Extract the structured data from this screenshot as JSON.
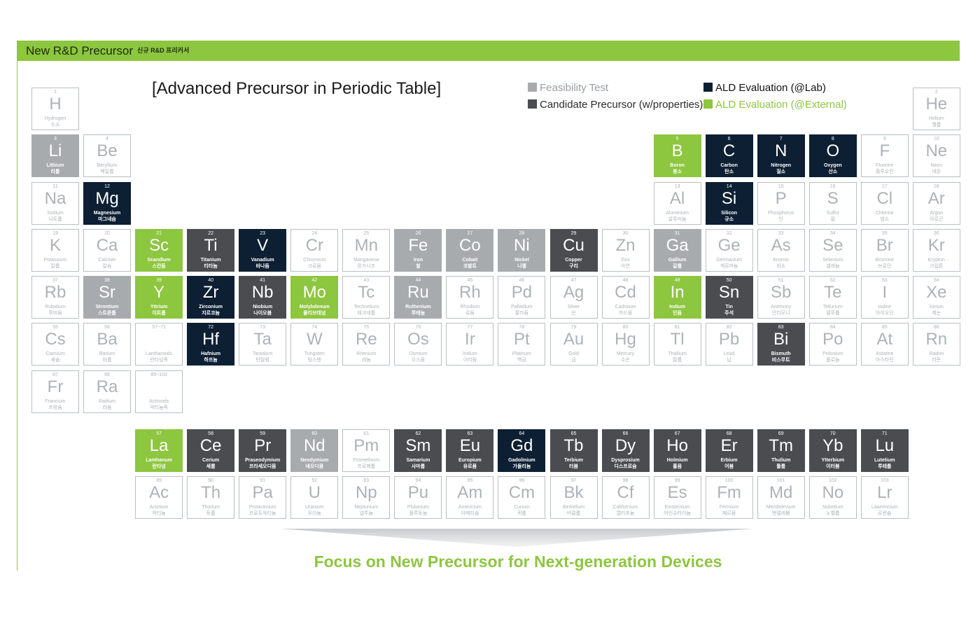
{
  "header": {
    "title": "New R&D Precursor",
    "subtitle": "신규 R&D 프리커서"
  },
  "table_title": "[Advanced Precursor in Periodic Table]",
  "legend": [
    {
      "label": "Feasibility Test",
      "color": "#a7abae",
      "text_color": "#9a9ea2"
    },
    {
      "label": "Candidate Precursor (w/properties)",
      "color": "#4a4c50",
      "text_color": "#2b2b2b"
    },
    {
      "label": "ALD Evaluation (@Lab)",
      "color": "#0c1f33",
      "text_color": "#111111"
    },
    {
      "label": "ALD Evaluation (@External)",
      "color": "#8dc63f",
      "text_color": "#8dc63f"
    }
  ],
  "elements": [
    {
      "n": "1",
      "s": "H",
      "en": "Hydrogen",
      "ko": "수소",
      "r": 0,
      "c": 0,
      "st": ""
    },
    {
      "n": "2",
      "s": "He",
      "en": "Helium",
      "ko": "헬륨",
      "r": 0,
      "c": 17,
      "st": ""
    },
    {
      "n": "3",
      "s": "Li",
      "en": "Lithium",
      "ko": "리튬",
      "r": 1,
      "c": 0,
      "st": "gray"
    },
    {
      "n": "4",
      "s": "Be",
      "en": "Beryllium",
      "ko": "베릴륨",
      "r": 1,
      "c": 1,
      "st": ""
    },
    {
      "n": "5",
      "s": "B",
      "en": "Boron",
      "ko": "붕소",
      "r": 1,
      "c": 12,
      "st": "green"
    },
    {
      "n": "6",
      "s": "C",
      "en": "Carbon",
      "ko": "탄소",
      "r": 1,
      "c": 13,
      "st": "navy"
    },
    {
      "n": "7",
      "s": "N",
      "en": "Nitrogen",
      "ko": "질소",
      "r": 1,
      "c": 14,
      "st": "navy"
    },
    {
      "n": "8",
      "s": "O",
      "en": "Oxygen",
      "ko": "산소",
      "r": 1,
      "c": 15,
      "st": "navy"
    },
    {
      "n": "9",
      "s": "F",
      "en": "Fluorine",
      "ko": "플루오린",
      "r": 1,
      "c": 16,
      "st": ""
    },
    {
      "n": "10",
      "s": "Ne",
      "en": "Neon",
      "ko": "네온",
      "r": 1,
      "c": 17,
      "st": ""
    },
    {
      "n": "11",
      "s": "Na",
      "en": "Sodium",
      "ko": "나트륨",
      "r": 2,
      "c": 0,
      "st": ""
    },
    {
      "n": "12",
      "s": "Mg",
      "en": "Magnesium",
      "ko": "마그네슘",
      "r": 2,
      "c": 1,
      "st": "navy"
    },
    {
      "n": "13",
      "s": "Al",
      "en": "Aluminium",
      "ko": "알루미늄",
      "r": 2,
      "c": 12,
      "st": ""
    },
    {
      "n": "14",
      "s": "Si",
      "en": "Silicon",
      "ko": "규소",
      "r": 2,
      "c": 13,
      "st": "navy"
    },
    {
      "n": "15",
      "s": "P",
      "en": "Phosphorus",
      "ko": "인",
      "r": 2,
      "c": 14,
      "st": ""
    },
    {
      "n": "16",
      "s": "S",
      "en": "Sulfur",
      "ko": "황",
      "r": 2,
      "c": 15,
      "st": ""
    },
    {
      "n": "17",
      "s": "Cl",
      "en": "Chlorine",
      "ko": "염소",
      "r": 2,
      "c": 16,
      "st": ""
    },
    {
      "n": "18",
      "s": "Ar",
      "en": "Argon",
      "ko": "아르곤",
      "r": 2,
      "c": 17,
      "st": ""
    },
    {
      "n": "19",
      "s": "K",
      "en": "Potassium",
      "ko": "칼륨",
      "r": 3,
      "c": 0,
      "st": ""
    },
    {
      "n": "20",
      "s": "Ca",
      "en": "Calcium",
      "ko": "칼슘",
      "r": 3,
      "c": 1,
      "st": ""
    },
    {
      "n": "21",
      "s": "Sc",
      "en": "Scandium",
      "ko": "스칸듐",
      "r": 3,
      "c": 2,
      "st": "green"
    },
    {
      "n": "22",
      "s": "Ti",
      "en": "Titanium",
      "ko": "티타늄",
      "r": 3,
      "c": 3,
      "st": "dark"
    },
    {
      "n": "23",
      "s": "V",
      "en": "Vanadium",
      "ko": "바나듐",
      "r": 3,
      "c": 4,
      "st": "navy"
    },
    {
      "n": "24",
      "s": "Cr",
      "en": "Chromium",
      "ko": "크로뮴",
      "r": 3,
      "c": 5,
      "st": ""
    },
    {
      "n": "25",
      "s": "Mn",
      "en": "Manganese",
      "ko": "망가니즈",
      "r": 3,
      "c": 6,
      "st": ""
    },
    {
      "n": "26",
      "s": "Fe",
      "en": "Iron",
      "ko": "철",
      "r": 3,
      "c": 7,
      "st": "gray"
    },
    {
      "n": "27",
      "s": "Co",
      "en": "Cobalt",
      "ko": "코발트",
      "r": 3,
      "c": 8,
      "st": "gray"
    },
    {
      "n": "28",
      "s": "Ni",
      "en": "Nickel",
      "ko": "니켈",
      "r": 3,
      "c": 9,
      "st": "gray"
    },
    {
      "n": "29",
      "s": "Cu",
      "en": "Copper",
      "ko": "구리",
      "r": 3,
      "c": 10,
      "st": "dark"
    },
    {
      "n": "30",
      "s": "Zn",
      "en": "Zinc",
      "ko": "아연",
      "r": 3,
      "c": 11,
      "st": ""
    },
    {
      "n": "31",
      "s": "Ga",
      "en": "Gallium",
      "ko": "갈륨",
      "r": 3,
      "c": 12,
      "st": "gray"
    },
    {
      "n": "32",
      "s": "Ge",
      "en": "Germanium",
      "ko": "게르마늄",
      "r": 3,
      "c": 13,
      "st": ""
    },
    {
      "n": "33",
      "s": "As",
      "en": "Arsenic",
      "ko": "비소",
      "r": 3,
      "c": 14,
      "st": ""
    },
    {
      "n": "34",
      "s": "Se",
      "en": "Selenium",
      "ko": "셀레늄",
      "r": 3,
      "c": 15,
      "st": ""
    },
    {
      "n": "35",
      "s": "Br",
      "en": "Bromine",
      "ko": "브로민",
      "r": 3,
      "c": 16,
      "st": ""
    },
    {
      "n": "36",
      "s": "Kr",
      "en": "Krypton",
      "ko": "크립톤",
      "r": 3,
      "c": 17,
      "st": ""
    },
    {
      "n": "37",
      "s": "Rb",
      "en": "Rubidium",
      "ko": "루비듐",
      "r": 4,
      "c": 0,
      "st": ""
    },
    {
      "n": "38",
      "s": "Sr",
      "en": "Strontium",
      "ko": "스트론튬",
      "r": 4,
      "c": 1,
      "st": "gray"
    },
    {
      "n": "39",
      "s": "Y",
      "en": "Yttrium",
      "ko": "이트륨",
      "r": 4,
      "c": 2,
      "st": "green"
    },
    {
      "n": "40",
      "s": "Zr",
      "en": "Zirconium",
      "ko": "지르코늄",
      "r": 4,
      "c": 3,
      "st": "navy"
    },
    {
      "n": "41",
      "s": "Nb",
      "en": "Niobium",
      "ko": "나이오븀",
      "r": 4,
      "c": 4,
      "st": "dark"
    },
    {
      "n": "42",
      "s": "Mo",
      "en": "Molybdenum",
      "ko": "몰리브데넘",
      "r": 4,
      "c": 5,
      "st": "green"
    },
    {
      "n": "43",
      "s": "Tc",
      "en": "Technetium",
      "ko": "테크네튬",
      "r": 4,
      "c": 6,
      "st": ""
    },
    {
      "n": "44",
      "s": "Ru",
      "en": "Ruthenium",
      "ko": "루테늄",
      "r": 4,
      "c": 7,
      "st": "gray"
    },
    {
      "n": "45",
      "s": "Rh",
      "en": "Rhodium",
      "ko": "로듐",
      "r": 4,
      "c": 8,
      "st": ""
    },
    {
      "n": "46",
      "s": "Pd",
      "en": "Palladium",
      "ko": "팔라듐",
      "r": 4,
      "c": 9,
      "st": ""
    },
    {
      "n": "47",
      "s": "Ag",
      "en": "Silver",
      "ko": "은",
      "r": 4,
      "c": 10,
      "st": ""
    },
    {
      "n": "48",
      "s": "Cd",
      "en": "Cadmium",
      "ko": "카드뮴",
      "r": 4,
      "c": 11,
      "st": ""
    },
    {
      "n": "49",
      "s": "In",
      "en": "Indium",
      "ko": "인듐",
      "r": 4,
      "c": 12,
      "st": "green"
    },
    {
      "n": "50",
      "s": "Sn",
      "en": "Tin",
      "ko": "주석",
      "r": 4,
      "c": 13,
      "st": "dark"
    },
    {
      "n": "51",
      "s": "Sb",
      "en": "Antimony",
      "ko": "안티모니",
      "r": 4,
      "c": 14,
      "st": ""
    },
    {
      "n": "52",
      "s": "Te",
      "en": "Tellurium",
      "ko": "텔루륨",
      "r": 4,
      "c": 15,
      "st": ""
    },
    {
      "n": "53",
      "s": "I",
      "en": "Iodine",
      "ko": "아이오딘",
      "r": 4,
      "c": 16,
      "st": ""
    },
    {
      "n": "54",
      "s": "Xe",
      "en": "Xenon",
      "ko": "제논",
      "r": 4,
      "c": 17,
      "st": ""
    },
    {
      "n": "55",
      "s": "Cs",
      "en": "Caesium",
      "ko": "세슘",
      "r": 5,
      "c": 0,
      "st": ""
    },
    {
      "n": "56",
      "s": "Ba",
      "en": "Barium",
      "ko": "바륨",
      "r": 5,
      "c": 1,
      "st": ""
    },
    {
      "n": "57~71",
      "s": "",
      "en": "Lanthanoids",
      "ko": "란타넘족",
      "r": 5,
      "c": 2,
      "st": "range"
    },
    {
      "n": "72",
      "s": "Hf",
      "en": "Hafnium",
      "ko": "하프늄",
      "r": 5,
      "c": 3,
      "st": "navy"
    },
    {
      "n": "73",
      "s": "Ta",
      "en": "Tantalum",
      "ko": "탄탈럼",
      "r": 5,
      "c": 4,
      "st": ""
    },
    {
      "n": "74",
      "s": "W",
      "en": "Tungsten",
      "ko": "텅스텐",
      "r": 5,
      "c": 5,
      "st": ""
    },
    {
      "n": "75",
      "s": "Re",
      "en": "Rhenium",
      "ko": "레늄",
      "r": 5,
      "c": 6,
      "st": ""
    },
    {
      "n": "76",
      "s": "Os",
      "en": "Osmium",
      "ko": "오스뮴",
      "r": 5,
      "c": 7,
      "st": ""
    },
    {
      "n": "77",
      "s": "Ir",
      "en": "Iridium",
      "ko": "이리듐",
      "r": 5,
      "c": 8,
      "st": ""
    },
    {
      "n": "78",
      "s": "Pt",
      "en": "Platinum",
      "ko": "백금",
      "r": 5,
      "c": 9,
      "st": ""
    },
    {
      "n": "79",
      "s": "Au",
      "en": "Gold",
      "ko": "금",
      "r": 5,
      "c": 10,
      "st": ""
    },
    {
      "n": "80",
      "s": "Hg",
      "en": "Mercury",
      "ko": "수은",
      "r": 5,
      "c": 11,
      "st": ""
    },
    {
      "n": "81",
      "s": "Tl",
      "en": "Thallium",
      "ko": "탈륨",
      "r": 5,
      "c": 12,
      "st": ""
    },
    {
      "n": "82",
      "s": "Pb",
      "en": "Lead",
      "ko": "납",
      "r": 5,
      "c": 13,
      "st": ""
    },
    {
      "n": "83",
      "s": "Bi",
      "en": "Bismuth",
      "ko": "비스무트",
      "r": 5,
      "c": 14,
      "st": "dark"
    },
    {
      "n": "84",
      "s": "Po",
      "en": "Polonium",
      "ko": "폴로늄",
      "r": 5,
      "c": 15,
      "st": ""
    },
    {
      "n": "85",
      "s": "At",
      "en": "Astatine",
      "ko": "아스타틴",
      "r": 5,
      "c": 16,
      "st": ""
    },
    {
      "n": "86",
      "s": "Rn",
      "en": "Radon",
      "ko": "라돈",
      "r": 5,
      "c": 17,
      "st": ""
    },
    {
      "n": "87",
      "s": "Fr",
      "en": "Francium",
      "ko": "프랑슘",
      "r": 6,
      "c": 0,
      "st": ""
    },
    {
      "n": "88",
      "s": "Ra",
      "en": "Radium",
      "ko": "라듐",
      "r": 6,
      "c": 1,
      "st": ""
    },
    {
      "n": "89~103",
      "s": "",
      "en": "Actinoids",
      "ko": "악티늄족",
      "r": 6,
      "c": 2,
      "st": "range"
    },
    {
      "n": "57",
      "s": "La",
      "en": "Lanthanum",
      "ko": "란타넘",
      "r": 7,
      "c": 2,
      "st": "green"
    },
    {
      "n": "58",
      "s": "Ce",
      "en": "Cerium",
      "ko": "세륨",
      "r": 7,
      "c": 3,
      "st": "dark"
    },
    {
      "n": "59",
      "s": "Pr",
      "en": "Praseodymium",
      "ko": "프라세오디뮴",
      "r": 7,
      "c": 4,
      "st": "dark"
    },
    {
      "n": "60",
      "s": "Nd",
      "en": "Neodymium",
      "ko": "네오디뮴",
      "r": 7,
      "c": 5,
      "st": "gray"
    },
    {
      "n": "61",
      "s": "Pm",
      "en": "Promethium",
      "ko": "프로메튬",
      "r": 7,
      "c": 6,
      "st": ""
    },
    {
      "n": "62",
      "s": "Sm",
      "en": "Samarium",
      "ko": "사마륨",
      "r": 7,
      "c": 7,
      "st": "dark"
    },
    {
      "n": "63",
      "s": "Eu",
      "en": "Europium",
      "ko": "유로퓸",
      "r": 7,
      "c": 8,
      "st": "dark"
    },
    {
      "n": "64",
      "s": "Gd",
      "en": "Gadolinium",
      "ko": "가돌리늄",
      "r": 7,
      "c": 9,
      "st": "navy"
    },
    {
      "n": "65",
      "s": "Tb",
      "en": "Terbium",
      "ko": "터븀",
      "r": 7,
      "c": 10,
      "st": "dark"
    },
    {
      "n": "66",
      "s": "Dy",
      "en": "Dysprosium",
      "ko": "디스프로슘",
      "r": 7,
      "c": 11,
      "st": "dark"
    },
    {
      "n": "67",
      "s": "Ho",
      "en": "Holmium",
      "ko": "홀뮴",
      "r": 7,
      "c": 12,
      "st": "dark"
    },
    {
      "n": "68",
      "s": "Er",
      "en": "Erbium",
      "ko": "어븀",
      "r": 7,
      "c": 13,
      "st": "dark"
    },
    {
      "n": "69",
      "s": "Tm",
      "en": "Thulium",
      "ko": "툴륨",
      "r": 7,
      "c": 14,
      "st": "dark"
    },
    {
      "n": "70",
      "s": "Yb",
      "en": "Ytterbium",
      "ko": "이터븀",
      "r": 7,
      "c": 15,
      "st": "dark"
    },
    {
      "n": "71",
      "s": "Lu",
      "en": "Lutetium",
      "ko": "루테튬",
      "r": 7,
      "c": 16,
      "st": "dark"
    },
    {
      "n": "89",
      "s": "Ac",
      "en": "Actinium",
      "ko": "악티늄",
      "r": 8,
      "c": 2,
      "st": ""
    },
    {
      "n": "90",
      "s": "Th",
      "en": "Thorium",
      "ko": "토륨",
      "r": 8,
      "c": 3,
      "st": ""
    },
    {
      "n": "91",
      "s": "Pa",
      "en": "Protactinium",
      "ko": "프로트악티늄",
      "r": 8,
      "c": 4,
      "st": ""
    },
    {
      "n": "92",
      "s": "U",
      "en": "Uranium",
      "ko": "우라늄",
      "r": 8,
      "c": 5,
      "st": ""
    },
    {
      "n": "93",
      "s": "Np",
      "en": "Neptunium",
      "ko": "넵투늄",
      "r": 8,
      "c": 6,
      "st": ""
    },
    {
      "n": "94",
      "s": "Pu",
      "en": "Plutonium",
      "ko": "플루토늄",
      "r": 8,
      "c": 7,
      "st": ""
    },
    {
      "n": "95",
      "s": "Am",
      "en": "Americium",
      "ko": "아메리슘",
      "r": 8,
      "c": 8,
      "st": ""
    },
    {
      "n": "96",
      "s": "Cm",
      "en": "Curium",
      "ko": "퀴륨",
      "r": 8,
      "c": 9,
      "st": ""
    },
    {
      "n": "97",
      "s": "Bk",
      "en": "Berkelium",
      "ko": "버클륨",
      "r": 8,
      "c": 10,
      "st": ""
    },
    {
      "n": "98",
      "s": "Cf",
      "en": "Californium",
      "ko": "캘리포늄",
      "r": 8,
      "c": 11,
      "st": ""
    },
    {
      "n": "99",
      "s": "Es",
      "en": "Einsteinium",
      "ko": "아인슈타이늄",
      "r": 8,
      "c": 12,
      "st": ""
    },
    {
      "n": "100",
      "s": "Fm",
      "en": "Fermium",
      "ko": "페르뮴",
      "r": 8,
      "c": 13,
      "st": ""
    },
    {
      "n": "101",
      "s": "Md",
      "en": "Mendelevium",
      "ko": "멘델레븀",
      "r": 8,
      "c": 14,
      "st": ""
    },
    {
      "n": "102",
      "s": "No",
      "en": "Nobelium",
      "ko": "노벨륨",
      "r": 8,
      "c": 15,
      "st": ""
    },
    {
      "n": "103",
      "s": "Lr",
      "en": "Lawrencium",
      "ko": "로렌슘",
      "r": 8,
      "c": 16,
      "st": ""
    }
  ],
  "footer": "Focus on New Precursor for Next-generation Devices",
  "colors": {
    "accent": "#8dc63f",
    "gray": "#a7abae",
    "dark": "#4a4c50",
    "navy": "#0c1f33"
  }
}
